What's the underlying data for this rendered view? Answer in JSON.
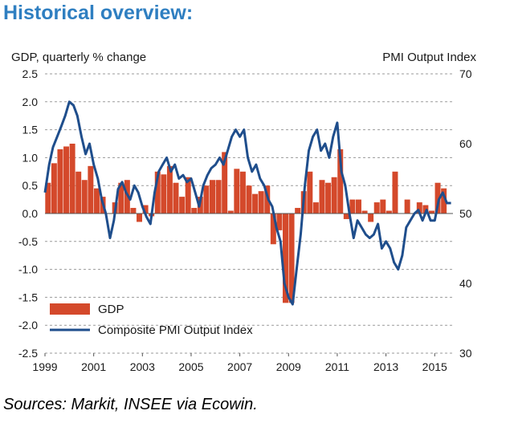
{
  "title": "Historical overview:",
  "source": "Sources: Markit, INSEE via Ecowin.",
  "colors": {
    "gdp_bar": "#d4492b",
    "pmi_line": "#1f4e8c",
    "title": "#2f7fc1"
  },
  "chart_data": {
    "type": "bar",
    "left_axis_label": "GDP, quarterly % change",
    "right_axis_label": "PMI Output Index",
    "x_ticks": [
      "1999",
      "2001",
      "2003",
      "2005",
      "2007",
      "2009",
      "2011",
      "2013",
      "2015"
    ],
    "left_ticks": [
      "2.5",
      "2.0",
      "1.5",
      "1.0",
      "0.5",
      "0.0",
      "-0.5",
      "-1.0",
      "-1.5",
      "-2.0",
      "-2.5"
    ],
    "right_ticks": [
      "70",
      "60",
      "50",
      "40",
      "30"
    ],
    "ylim_left": [
      -2.5,
      2.5
    ],
    "ylim_right": [
      30,
      70
    ],
    "xlim": [
      1999.0,
      2015.75
    ],
    "grid": "horizontal dashed",
    "legend_position": "bottom-left",
    "series": [
      {
        "name": "GDP",
        "type": "bar",
        "axis": "left",
        "x": [
          1999.0,
          1999.25,
          1999.5,
          1999.75,
          2000.0,
          2000.25,
          2000.5,
          2000.75,
          2001.0,
          2001.25,
          2001.5,
          2001.75,
          2002.0,
          2002.25,
          2002.5,
          2002.75,
          2003.0,
          2003.25,
          2003.5,
          2003.75,
          2004.0,
          2004.25,
          2004.5,
          2004.75,
          2005.0,
          2005.25,
          2005.5,
          2005.75,
          2006.0,
          2006.25,
          2006.5,
          2006.75,
          2007.0,
          2007.25,
          2007.5,
          2007.75,
          2008.0,
          2008.25,
          2008.5,
          2008.75,
          2009.0,
          2009.25,
          2009.5,
          2009.75,
          2010.0,
          2010.25,
          2010.5,
          2010.75,
          2011.0,
          2011.25,
          2011.5,
          2011.75,
          2012.0,
          2012.25,
          2012.5,
          2012.75,
          2013.0,
          2013.25,
          2013.5,
          2013.75,
          2014.0,
          2014.25,
          2014.5,
          2014.75,
          2015.0,
          2015.25
        ],
        "values": [
          0.55,
          0.9,
          1.15,
          1.2,
          1.25,
          0.75,
          0.6,
          0.85,
          0.45,
          0.3,
          0.0,
          0.2,
          0.55,
          0.6,
          0.1,
          -0.15,
          0.15,
          -0.05,
          0.75,
          0.7,
          0.85,
          0.55,
          0.3,
          0.65,
          0.1,
          0.3,
          0.5,
          0.6,
          0.6,
          1.1,
          0.05,
          0.8,
          0.75,
          0.5,
          0.35,
          0.4,
          0.5,
          -0.55,
          -0.3,
          -1.6,
          -1.6,
          0.1,
          0.4,
          0.75,
          0.2,
          0.6,
          0.55,
          0.65,
          1.15,
          -0.1,
          0.25,
          0.25,
          0.05,
          -0.15,
          0.2,
          0.25,
          0.05,
          0.75,
          0.0,
          0.25,
          0.0,
          0.2,
          0.15,
          0.05,
          0.55,
          0.45
        ]
      },
      {
        "name": "Composite PMI Output Index",
        "type": "line",
        "axis": "right",
        "x": [
          1999.0,
          1999.17,
          1999.33,
          1999.5,
          1999.67,
          1999.83,
          2000.0,
          2000.17,
          2000.33,
          2000.5,
          2000.67,
          2000.83,
          2001.0,
          2001.17,
          2001.33,
          2001.5,
          2001.67,
          2001.83,
          2002.0,
          2002.17,
          2002.33,
          2002.5,
          2002.67,
          2002.83,
          2003.0,
          2003.17,
          2003.33,
          2003.5,
          2003.67,
          2003.83,
          2004.0,
          2004.17,
          2004.33,
          2004.5,
          2004.67,
          2004.83,
          2005.0,
          2005.17,
          2005.33,
          2005.5,
          2005.67,
          2005.83,
          2006.0,
          2006.17,
          2006.33,
          2006.5,
          2006.67,
          2006.83,
          2007.0,
          2007.17,
          2007.33,
          2007.5,
          2007.67,
          2007.83,
          2008.0,
          2008.17,
          2008.33,
          2008.5,
          2008.67,
          2008.83,
          2009.0,
          2009.17,
          2009.33,
          2009.5,
          2009.67,
          2009.83,
          2010.0,
          2010.17,
          2010.33,
          2010.5,
          2010.67,
          2010.83,
          2011.0,
          2011.17,
          2011.33,
          2011.5,
          2011.67,
          2011.83,
          2012.0,
          2012.17,
          2012.33,
          2012.5,
          2012.67,
          2012.83,
          2013.0,
          2013.17,
          2013.33,
          2013.5,
          2013.67,
          2013.83,
          2014.0,
          2014.17,
          2014.33,
          2014.5,
          2014.67,
          2014.83,
          2015.0,
          2015.17,
          2015.33,
          2015.5,
          2015.67
        ],
        "values": [
          53,
          57,
          59.5,
          61,
          62.5,
          64,
          66,
          65.5,
          64,
          61,
          58.5,
          60,
          57,
          55,
          52,
          50,
          46.5,
          49,
          53.5,
          54.5,
          53,
          52,
          54,
          53,
          51,
          49.5,
          48.5,
          53,
          56,
          57,
          58,
          56,
          57,
          55,
          55.5,
          54.5,
          55,
          53,
          51,
          54,
          55.5,
          56.5,
          57,
          58,
          57,
          59,
          61,
          62,
          61,
          62,
          58,
          56,
          57,
          55,
          54,
          52,
          51,
          48,
          46,
          40,
          38,
          37,
          42,
          47,
          54,
          59,
          61,
          62,
          59,
          60,
          58,
          61,
          63,
          56,
          54,
          50,
          46.5,
          49,
          48,
          47,
          46.5,
          47,
          48.5,
          45,
          46,
          45,
          43,
          42,
          44,
          48,
          49,
          50,
          50.5,
          49,
          50.5,
          49,
          49,
          52,
          53,
          51.5,
          51.5
        ]
      }
    ]
  }
}
